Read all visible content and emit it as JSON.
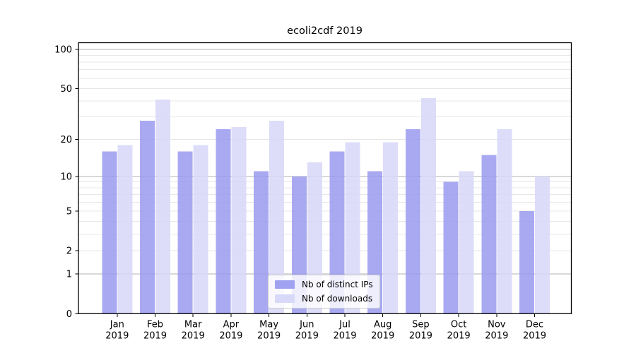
{
  "chart_data": {
    "type": "bar",
    "title": "ecoli2cdf 2019",
    "categories": [
      "Jan",
      "Feb",
      "Mar",
      "Apr",
      "May",
      "Jun",
      "Jul",
      "Aug",
      "Sep",
      "Oct",
      "Nov",
      "Dec"
    ],
    "tick_year": "2019",
    "series": [
      {
        "name": "Nb of distinct IPs",
        "color": "#9c9cf0",
        "values": [
          16,
          28,
          16,
          24,
          11,
          10,
          16,
          11,
          24,
          9,
          15,
          5
        ]
      },
      {
        "name": "Nb of downloads",
        "color": "#d8d8f8",
        "values": [
          18,
          41,
          18,
          25,
          28,
          13,
          19,
          19,
          42,
          11,
          24,
          10
        ]
      }
    ],
    "yscale": "log1p",
    "ylim": [
      0,
      112
    ],
    "ytick_labels": [
      100,
      50,
      20,
      10,
      5,
      2,
      1,
      0
    ],
    "grid": "major-and-minor",
    "legend_position": "bottom-center",
    "colors": {
      "major_gridline": "#b2b2b2",
      "minor_gridline": "#e7e7e7",
      "spine": "#000000",
      "text": "#000000"
    }
  }
}
